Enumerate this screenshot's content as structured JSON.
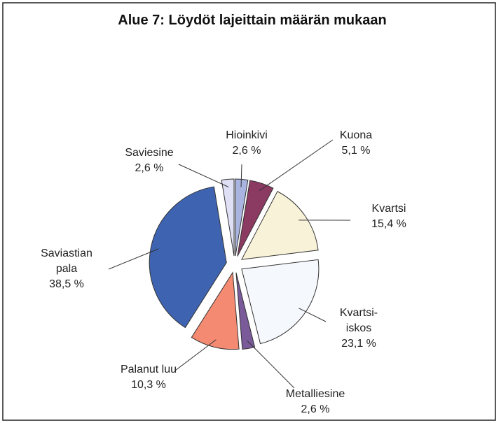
{
  "chart_data": {
    "type": "pie",
    "title": "Alue 7: Löydöt lajeittain määrän mukaan",
    "categories": [
      "Hioinkivi",
      "Kuona",
      "Kvartsi",
      "Kvartsi-iskos",
      "Metalliesine",
      "Palanut luu",
      "Saviastian pala",
      "Saviesine"
    ],
    "values": [
      2.6,
      5.1,
      15.4,
      23.1,
      2.6,
      10.3,
      38.5,
      2.6
    ],
    "value_labels": [
      "2,6 %",
      "5,1 %",
      "15,4 %",
      "23,1 %",
      "2,6 %",
      "10,3 %",
      "38,5 %",
      "2,6 %"
    ],
    "colors": [
      "#a9b4e0",
      "#8b3a62",
      "#f8f3d8",
      "#f5f8fc",
      "#7b5a9a",
      "#f48a72",
      "#3e63b0",
      "#dfe0f5"
    ]
  }
}
